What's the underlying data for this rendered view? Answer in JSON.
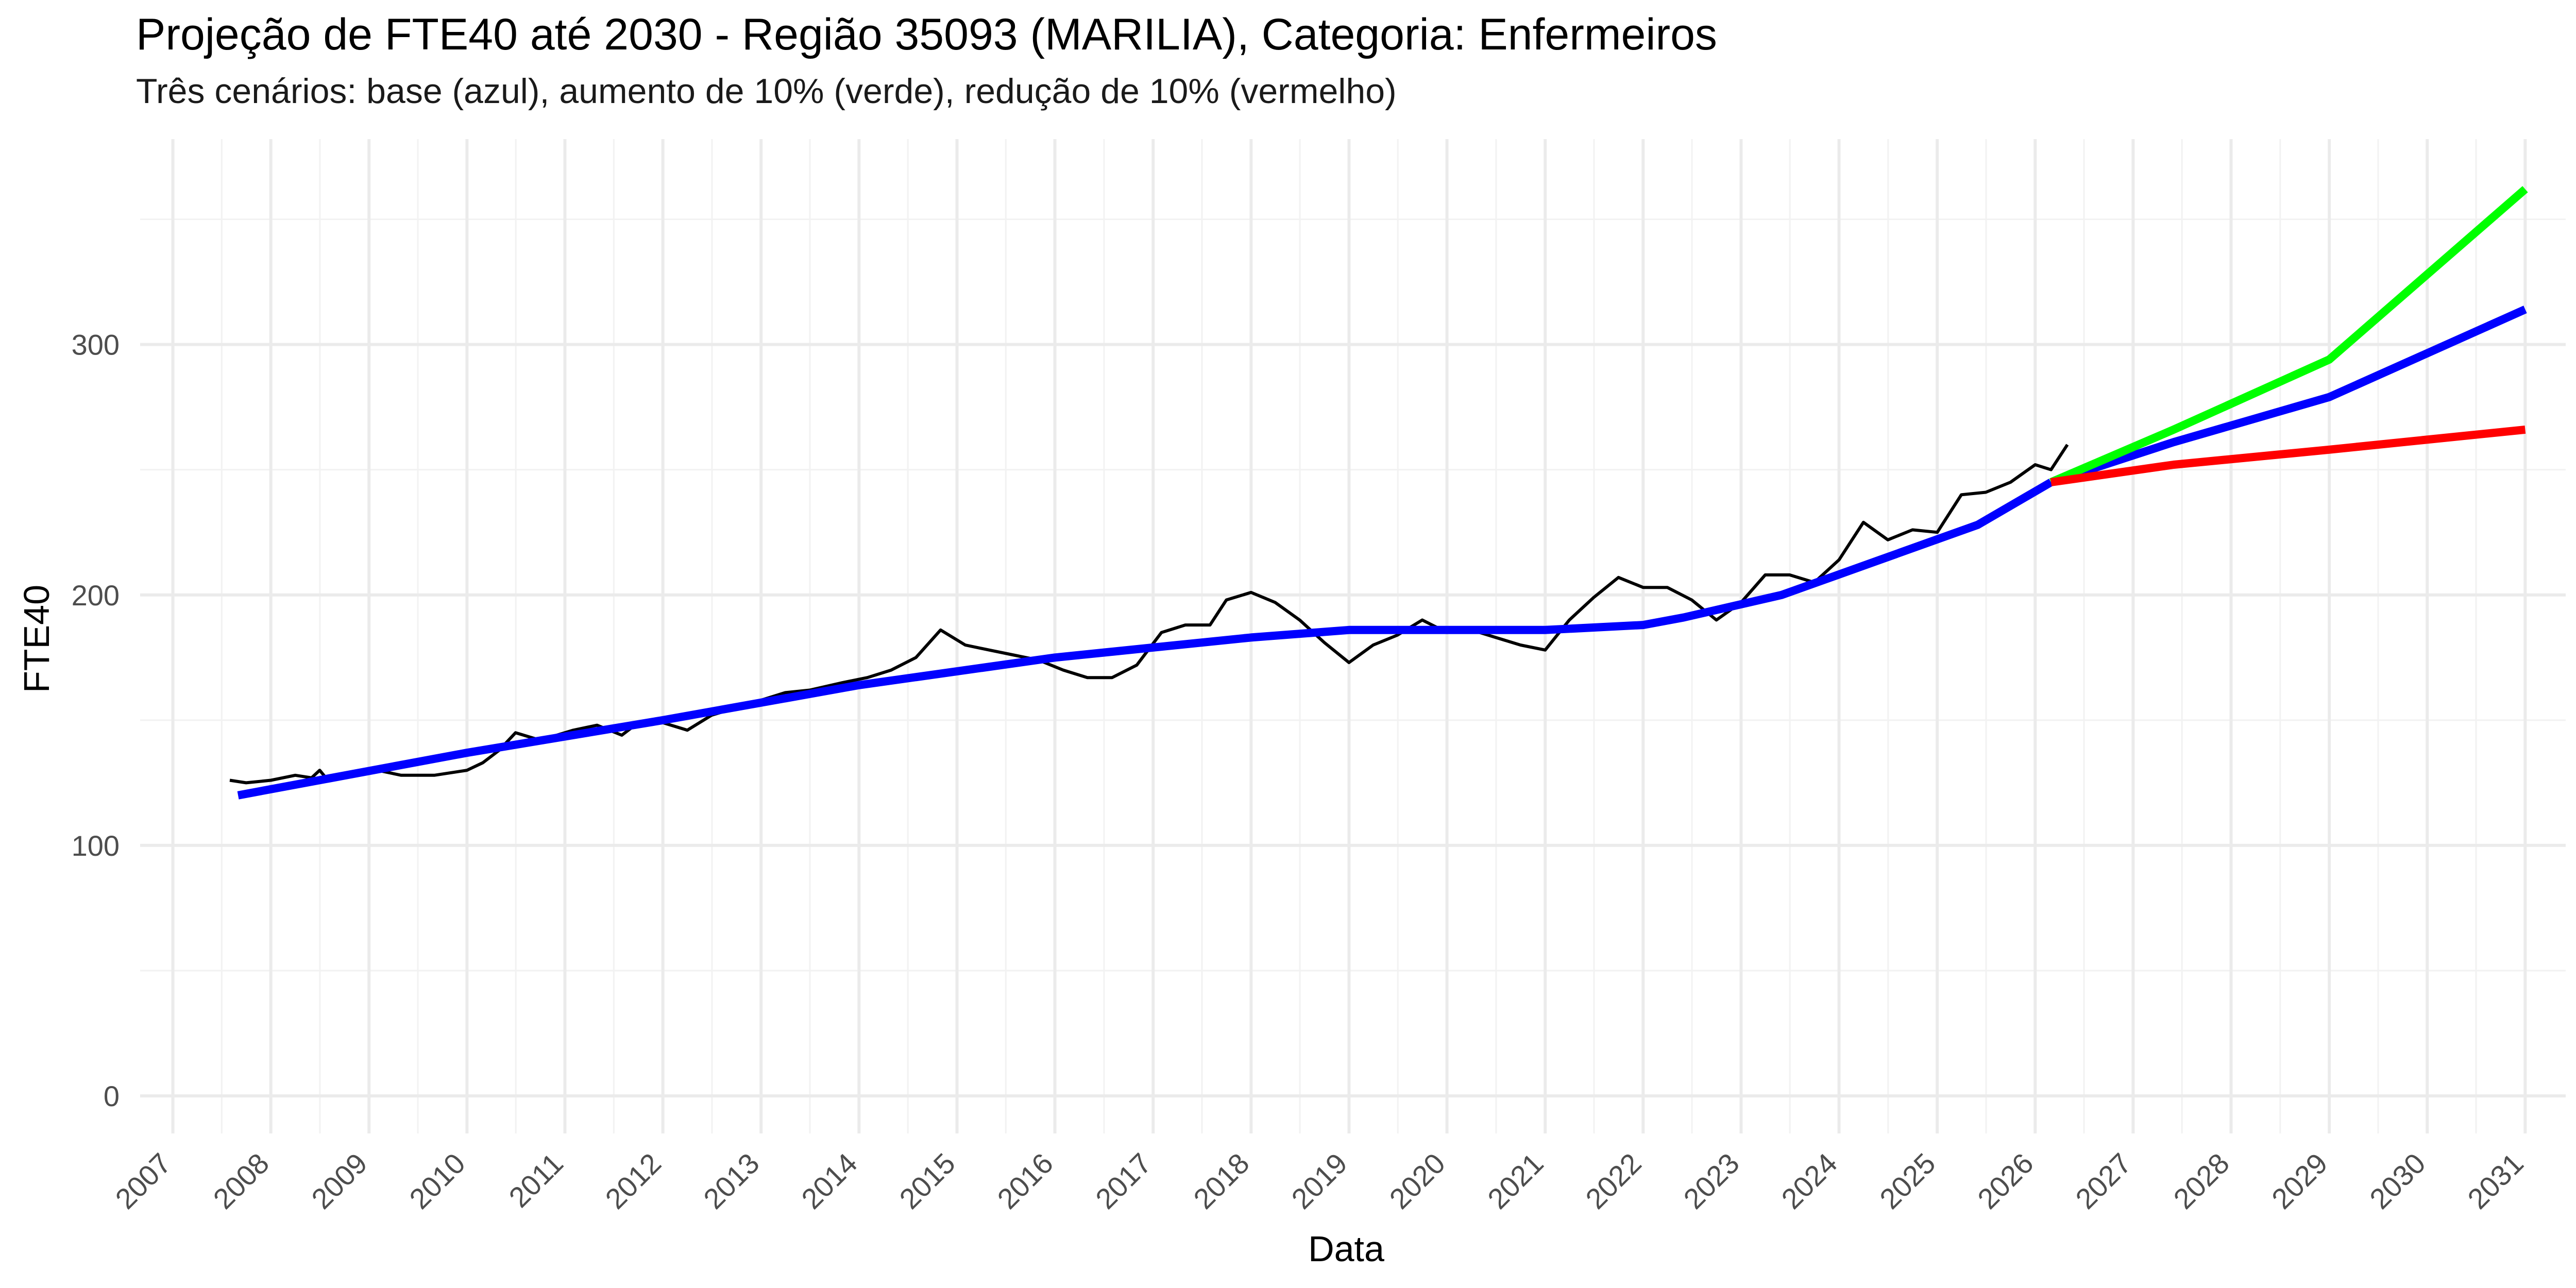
{
  "chart_data": {
    "type": "line",
    "title": "Projeção de FTE40 até 2030 - Região 35093 (MARILIA), Categoria: Enfermeiros",
    "subtitle": "Três cenários: base (azul), aumento de 10% (verde), redução de 10% (vermelho)",
    "xlabel": "Data",
    "ylabel": "FTE40",
    "xlim": [
      "2006-09-01",
      "2031-06-01"
    ],
    "ylim": [
      -15,
      382
    ],
    "x_ticks": [
      "2007",
      "2008",
      "2009",
      "2010",
      "2011",
      "2012",
      "2013",
      "2014",
      "2015",
      "2016",
      "2017",
      "2018",
      "2019",
      "2020",
      "2021",
      "2022",
      "2023",
      "2024",
      "2025",
      "2026",
      "2027",
      "2028",
      "2029",
      "2030",
      "2031"
    ],
    "y_ticks": [
      "0",
      "100",
      "200",
      "300"
    ],
    "grid": true,
    "legend": "none",
    "series": [
      {
        "color": "#000000",
        "points": [
          [
            "2007-08-01",
            126
          ],
          [
            "2007-10-01",
            125
          ],
          [
            "2008-01-01",
            126
          ],
          [
            "2008-04-01",
            128
          ],
          [
            "2008-06-01",
            127
          ],
          [
            "2008-07-01",
            130
          ],
          [
            "2008-08-01",
            126
          ],
          [
            "2008-11-01",
            128
          ],
          [
            "2009-02-01",
            130
          ],
          [
            "2009-05-01",
            128
          ],
          [
            "2009-09-01",
            128
          ],
          [
            "2010-01-01",
            130
          ],
          [
            "2010-03-01",
            133
          ],
          [
            "2010-05-01",
            138
          ],
          [
            "2010-07-01",
            145
          ],
          [
            "2010-10-01",
            142
          ],
          [
            "2011-02-01",
            146
          ],
          [
            "2011-05-01",
            148
          ],
          [
            "2011-08-01",
            144
          ],
          [
            "2011-10-01",
            149
          ],
          [
            "2012-01-01",
            149
          ],
          [
            "2012-04-01",
            146
          ],
          [
            "2012-07-01",
            152
          ],
          [
            "2012-10-01",
            155
          ],
          [
            "2013-01-01",
            158
          ],
          [
            "2013-04-01",
            161
          ],
          [
            "2013-07-01",
            162
          ],
          [
            "2013-11-01",
            165
          ],
          [
            "2014-02-01",
            167
          ],
          [
            "2014-05-01",
            170
          ],
          [
            "2014-08-01",
            175
          ],
          [
            "2014-11-01",
            186
          ],
          [
            "2015-02-01",
            180
          ],
          [
            "2015-05-01",
            178
          ],
          [
            "2015-08-01",
            176
          ],
          [
            "2015-11-01",
            174
          ],
          [
            "2016-02-01",
            170
          ],
          [
            "2016-05-01",
            167
          ],
          [
            "2016-08-01",
            167
          ],
          [
            "2016-11-01",
            172
          ],
          [
            "2017-02-01",
            185
          ],
          [
            "2017-05-01",
            188
          ],
          [
            "2017-08-01",
            188
          ],
          [
            "2017-10-01",
            198
          ],
          [
            "2018-01-01",
            201
          ],
          [
            "2018-04-01",
            197
          ],
          [
            "2018-07-01",
            190
          ],
          [
            "2018-10-01",
            181
          ],
          [
            "2019-01-01",
            173
          ],
          [
            "2019-04-01",
            180
          ],
          [
            "2019-07-01",
            184
          ],
          [
            "2019-10-01",
            190
          ],
          [
            "2020-01-01",
            185
          ],
          [
            "2020-04-01",
            186
          ],
          [
            "2020-07-01",
            183
          ],
          [
            "2020-10-01",
            180
          ],
          [
            "2021-01-01",
            178
          ],
          [
            "2021-04-01",
            190
          ],
          [
            "2021-07-01",
            199
          ],
          [
            "2021-10-01",
            207
          ],
          [
            "2022-01-01",
            203
          ],
          [
            "2022-04-01",
            203
          ],
          [
            "2022-07-01",
            198
          ],
          [
            "2022-10-01",
            190
          ],
          [
            "2023-01-01",
            197
          ],
          [
            "2023-04-01",
            208
          ],
          [
            "2023-07-01",
            208
          ],
          [
            "2023-10-01",
            205
          ],
          [
            "2024-01-01",
            214
          ],
          [
            "2024-04-01",
            229
          ],
          [
            "2024-07-01",
            222
          ],
          [
            "2024-10-01",
            226
          ],
          [
            "2025-01-01",
            225
          ],
          [
            "2025-04-01",
            240
          ],
          [
            "2025-07-01",
            241
          ],
          [
            "2025-10-01",
            245
          ],
          [
            "2026-01-01",
            252
          ],
          [
            "2026-03-01",
            250
          ],
          [
            "2026-05-01",
            260
          ]
        ]
      },
      {
        "color": "#0000ff",
        "points": [
          [
            "2007-09-01",
            120
          ],
          [
            "2010-01-01",
            137
          ],
          [
            "2012-01-01",
            150
          ],
          [
            "2014-01-01",
            164
          ],
          [
            "2016-01-01",
            175
          ],
          [
            "2018-01-01",
            183
          ],
          [
            "2019-01-01",
            186
          ],
          [
            "2021-01-01",
            186
          ],
          [
            "2022-01-01",
            188
          ],
          [
            "2022-06-01",
            191
          ],
          [
            "2023-06-01",
            200
          ],
          [
            "2024-06-01",
            214
          ],
          [
            "2025-06-01",
            228
          ],
          [
            "2026-03-01",
            245
          ]
        ]
      },
      {
        "color": "#0000ff",
        "points": [
          [
            "2026-03-01",
            245
          ],
          [
            "2027-06-01",
            261
          ],
          [
            "2029-01-01",
            279
          ],
          [
            "2031-01-01",
            314
          ]
        ]
      },
      {
        "color": "#00ff00",
        "points": [
          [
            "2026-03-01",
            245
          ],
          [
            "2027-06-01",
            266
          ],
          [
            "2029-01-01",
            294
          ],
          [
            "2031-01-01",
            362
          ]
        ]
      },
      {
        "color": "#ff0000",
        "points": [
          [
            "2026-03-01",
            245
          ],
          [
            "2027-06-01",
            252
          ],
          [
            "2029-01-01",
            258
          ],
          [
            "2031-01-01",
            266
          ]
        ]
      }
    ]
  }
}
